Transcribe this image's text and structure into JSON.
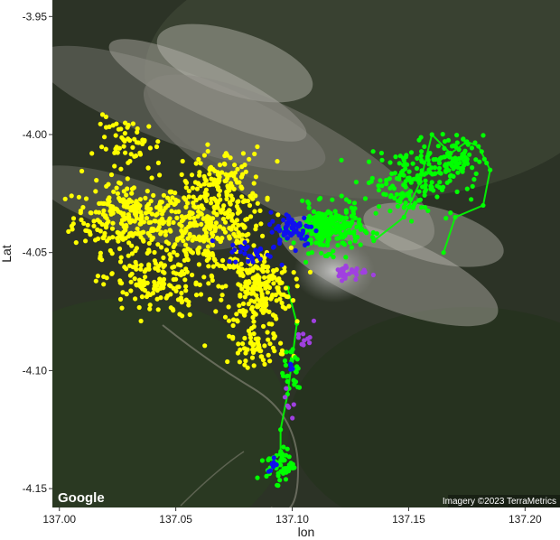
{
  "chart_data": {
    "type": "scatter",
    "xlabel": "lon",
    "ylabel": "Lat",
    "xlim": [
      136.997,
      137.215
    ],
    "ylim": [
      -4.158,
      -3.943
    ],
    "x_ticks": [
      "137.00",
      "137.05",
      "137.10",
      "137.15",
      "137.20"
    ],
    "y_ticks": [
      "-3.95",
      "-4.00",
      "-4.05",
      "-4.10",
      "-4.15"
    ],
    "x_tick_values": [
      137.0,
      137.05,
      137.1,
      137.15,
      137.2
    ],
    "y_tick_values": [
      -3.95,
      -4.0,
      -4.05,
      -4.1,
      -4.15
    ],
    "basemap": "satellite",
    "series": [
      {
        "color": "#ffff00",
        "clusters": [
          [
            137.03,
            -4.035,
            0.02,
            0.012,
            260
          ],
          [
            137.065,
            -4.04,
            0.02,
            0.015,
            260
          ],
          [
            137.085,
            -4.065,
            0.012,
            0.014,
            220
          ],
          [
            137.04,
            -4.063,
            0.018,
            0.012,
            150
          ],
          [
            137.07,
            -4.02,
            0.015,
            0.012,
            120
          ],
          [
            137.03,
            -4.005,
            0.012,
            0.01,
            60
          ],
          [
            137.085,
            -4.09,
            0.01,
            0.006,
            60
          ]
        ]
      },
      {
        "color": "#00ff00",
        "clusters": [
          [
            137.115,
            -4.04,
            0.012,
            0.008,
            260
          ],
          [
            137.15,
            -4.02,
            0.016,
            0.012,
            160
          ],
          [
            137.17,
            -4.01,
            0.01,
            0.008,
            80
          ],
          [
            137.095,
            -4.14,
            0.005,
            0.006,
            60
          ],
          [
            137.1,
            -4.1,
            0.004,
            0.012,
            25
          ]
        ]
      },
      {
        "color": "#1010ee",
        "clusters": [
          [
            137.1,
            -4.04,
            0.008,
            0.006,
            70
          ],
          [
            137.082,
            -4.05,
            0.008,
            0.004,
            30
          ],
          [
            137.092,
            -4.14,
            0.002,
            0.003,
            10
          ],
          [
            137.1,
            -4.1,
            0.002,
            0.003,
            4
          ]
        ]
      },
      {
        "color": "#a040e0",
        "clusters": [
          [
            137.125,
            -4.058,
            0.006,
            0.003,
            30
          ],
          [
            137.105,
            -4.085,
            0.003,
            0.01,
            10
          ],
          [
            137.098,
            -4.115,
            0.002,
            0.005,
            6
          ]
        ]
      }
    ],
    "paths": [
      {
        "color": "#00ff00",
        "points": [
          [
            137.135,
            -4.045
          ],
          [
            137.148,
            -4.035
          ],
          [
            137.155,
            -4.02
          ],
          [
            137.16,
            -4.0
          ],
          [
            137.168,
            -4.008
          ],
          [
            137.175,
            -4.003
          ],
          [
            137.18,
            -4.005
          ],
          [
            137.185,
            -4.015
          ],
          [
            137.182,
            -4.03
          ],
          [
            137.17,
            -4.035
          ],
          [
            137.165,
            -4.05
          ]
        ]
      },
      {
        "color": "#00ff00",
        "points": [
          [
            137.098,
            -4.065
          ],
          [
            137.102,
            -4.08
          ],
          [
            137.1,
            -4.095
          ],
          [
            137.098,
            -4.11
          ],
          [
            137.095,
            -4.125
          ],
          [
            137.095,
            -4.14
          ]
        ]
      }
    ],
    "attribution": "Imagery ©2023 TerraMetrics",
    "logo": "Google"
  }
}
